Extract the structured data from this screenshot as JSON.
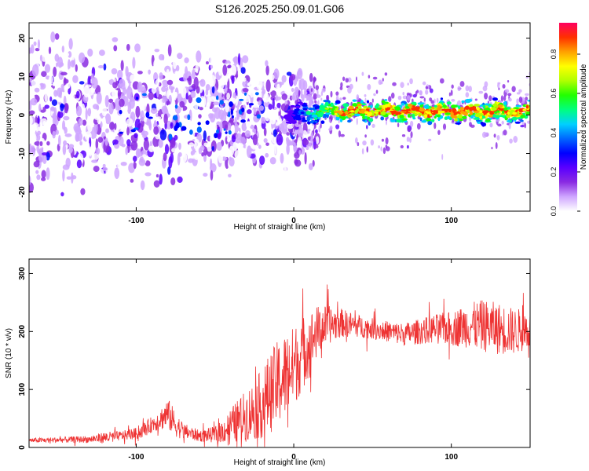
{
  "title": "S126.2025.250.09.01.G06",
  "colors": {
    "snr_line": "#ee3333",
    "frame": "#000000",
    "colormap": [
      "#ffffff",
      "#cfa6ff",
      "#8a2be2",
      "#5a00ff",
      "#0000ff",
      "#0066ff",
      "#00d0ff",
      "#00ff7f",
      "#22ff00",
      "#b0ff00",
      "#ffff00",
      "#ffa000",
      "#ff3000",
      "#ff0060"
    ]
  },
  "chart_data": [
    {
      "type": "heatmap",
      "title": "",
      "xlabel": "Height of straight line (km)",
      "ylabel": "Frequency (Hz)",
      "xlim": [
        -168,
        150
      ],
      "ylim": [
        -25,
        24
      ],
      "xticks": [
        -100,
        0,
        100
      ],
      "xtick_labels": [
        "-100",
        "0",
        "100"
      ],
      "yticks": [
        -20,
        -10,
        0,
        10,
        20
      ],
      "ytick_labels": [
        "-20",
        "-10",
        "0",
        "10",
        "20"
      ],
      "colorbar": {
        "label": "Normalized spectral amplitude",
        "range": [
          0,
          0.96
        ],
        "ticks": [
          0,
          0.2,
          0.4,
          0.6,
          0.8
        ],
        "tick_labels": [
          "0.0",
          "0.2",
          "0.4",
          "0.6",
          "0.8"
        ]
      },
      "description_of_signal": {
        "noise_region_x": [
          -168,
          -10
        ],
        "signal_band_center_hz": [
          [
            0,
            0
          ],
          [
            20,
            1
          ],
          [
            60,
            1
          ],
          [
            100,
            1
          ],
          [
            150,
            1
          ]
        ],
        "peak_amplitude": 0.96
      }
    },
    {
      "type": "line",
      "title": "",
      "xlabel": "Height of straight line (km)",
      "ylabel": "SNR (10 * v/v)",
      "xlim": [
        -168,
        150
      ],
      "ylim": [
        0,
        325
      ],
      "xticks": [
        -100,
        0,
        100
      ],
      "xtick_labels": [
        "-100",
        "0",
        "100"
      ],
      "yticks": [
        0,
        100,
        200,
        300
      ],
      "ytick_labels": [
        "0",
        "100",
        "200",
        "300"
      ],
      "series": [
        {
          "name": "SNR",
          "x": [
            -168,
            -150,
            -130,
            -120,
            -110,
            -100,
            -95,
            -90,
            -85,
            -80,
            -75,
            -70,
            -60,
            -50,
            -45,
            -40,
            -30,
            -20,
            -15,
            -10,
            -5,
            0,
            5,
            10,
            15,
            20,
            30,
            40,
            50,
            60,
            70,
            80,
            90,
            100,
            110,
            120,
            130,
            140,
            150
          ],
          "y": [
            12,
            13,
            14,
            17,
            20,
            24,
            30,
            40,
            48,
            58,
            40,
            28,
            20,
            22,
            28,
            38,
            55,
            75,
            95,
            110,
            125,
            140,
            160,
            180,
            200,
            210,
            215,
            210,
            205,
            200,
            195,
            200,
            205,
            205,
            210,
            210,
            205,
            200,
            205
          ],
          "noise_amplitude": [
            4,
            5,
            6,
            10,
            8,
            10,
            12,
            14,
            18,
            28,
            22,
            14,
            10,
            14,
            20,
            30,
            45,
            60,
            70,
            75,
            75,
            70,
            65,
            55,
            45,
            35,
            25,
            20,
            18,
            18,
            20,
            22,
            25,
            30,
            38,
            45,
            45,
            40,
            35
          ]
        }
      ]
    }
  ]
}
